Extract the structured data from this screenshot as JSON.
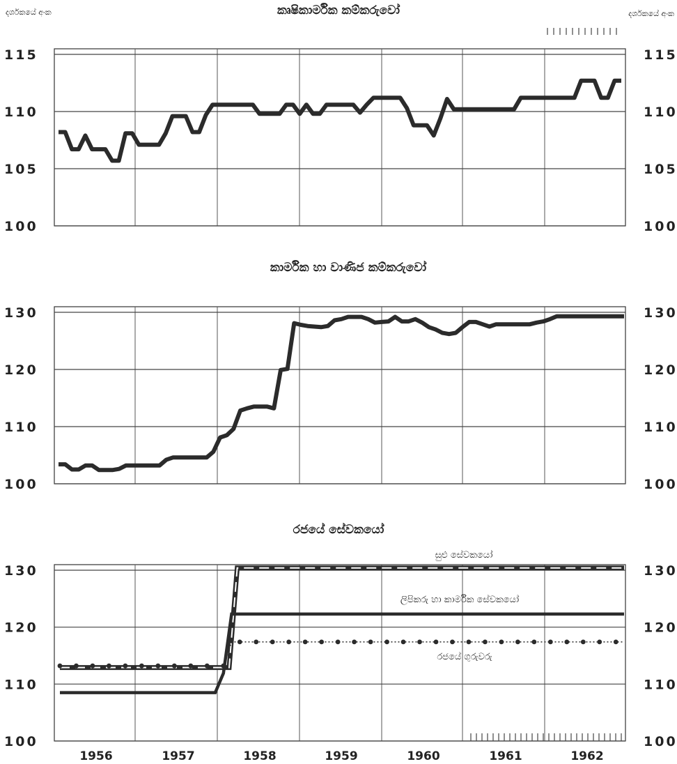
{
  "chart_data": [
    {
      "type": "line",
      "title": "කෘෂිකාර්මික කම්කරුවෝ",
      "ylabel_left": "දර්ශකයේ අංක",
      "ylabel_right": "දර්ශකයේ අංක",
      "ylim": [
        100,
        115
      ],
      "yticks": [
        100,
        105,
        110,
        115
      ],
      "grid": true,
      "series": [
        {
          "values": [
            108.2,
            108.2,
            106.7,
            106.7,
            107.9,
            106.7,
            106.7,
            106.7,
            105.7,
            105.7,
            108.1,
            108.1,
            107.1,
            107.1,
            107.1,
            107.1,
            108.1,
            109.6,
            109.6,
            109.6,
            108.2,
            108.2,
            109.7,
            110.6,
            110.6,
            110.6,
            110.6,
            110.6,
            110.6,
            110.6,
            109.8,
            109.8,
            109.8,
            109.8,
            110.6,
            110.6,
            109.8,
            110.6,
            109.8,
            109.8,
            110.6,
            110.6,
            110.6,
            110.6,
            110.6,
            109.9,
            110.6,
            111.2,
            111.2,
            111.2,
            111.2,
            111.2,
            110.3,
            108.8,
            108.8,
            108.8,
            107.9,
            109.4,
            111.1,
            110.2,
            110.2,
            110.2,
            110.2,
            110.2,
            110.2,
            110.2,
            110.2,
            110.2,
            110.2,
            111.2,
            111.2,
            111.2,
            111.2,
            111.2,
            111.2,
            111.2,
            111.2,
            111.2,
            112.7,
            112.7,
            112.7,
            111.2,
            111.2,
            112.7,
            112.7
          ]
        }
      ]
    },
    {
      "type": "line",
      "title": "කාර්මික හා වාණිජ කම්කරුවෝ",
      "ylim": [
        100,
        130
      ],
      "yticks": [
        100,
        110,
        120,
        130
      ],
      "grid": true,
      "series": [
        {
          "values": [
            103.4,
            103.4,
            102.5,
            102.5,
            103.2,
            103.2,
            102.4,
            102.4,
            102.4,
            102.6,
            103.2,
            103.2,
            103.2,
            103.2,
            103.2,
            103.2,
            104.2,
            104.6,
            104.6,
            104.6,
            104.6,
            104.6,
            104.6,
            105.6,
            108.1,
            108.5,
            109.6,
            112.8,
            113.2,
            113.5,
            113.5,
            113.5,
            113.2,
            119.9,
            120.1,
            128.1,
            127.8,
            127.6,
            127.5,
            127.4,
            127.6,
            128.6,
            128.8,
            129.2,
            129.2,
            129.2,
            128.8,
            128.2,
            128.3,
            128.4,
            129.2,
            128.4,
            128.4,
            128.8,
            128.2,
            127.4,
            127.0,
            126.4,
            126.2,
            126.4,
            127.4,
            128.3,
            128.3,
            127.9,
            127.5,
            127.9,
            127.9,
            127.9,
            127.9,
            127.9,
            127.9,
            128.2,
            128.4,
            128.8,
            129.3,
            129.3,
            129.3,
            129.3,
            129.3,
            129.3,
            129.3,
            129.3,
            129.3,
            129.3,
            129.3
          ]
        }
      ]
    },
    {
      "type": "line",
      "title": "රජයේ සේවකයෝ",
      "ylim": [
        100,
        130
      ],
      "yticks": [
        100,
        110,
        120,
        130
      ],
      "grid": true,
      "series": [
        {
          "name": "සුළු සේවකයෝ",
          "values": [
            112.9,
            112.9,
            112.9,
            112.9,
            112.9,
            112.9,
            112.9,
            112.9,
            112.9,
            112.9,
            112.9,
            112.9,
            112.9,
            112.9,
            112.9,
            112.9,
            112.9,
            112.9,
            112.9,
            112.9,
            112.9,
            112.9,
            130.4,
            130.4,
            130.4,
            130.4,
            130.4,
            130.4,
            130.4,
            130.4,
            130.4,
            130.4,
            130.4,
            130.4,
            130.4,
            130.4,
            130.4,
            130.4,
            130.4,
            130.4,
            130.4,
            130.4,
            130.4,
            130.4,
            130.4,
            130.4,
            130.4,
            130.4,
            130.4,
            130.4,
            130.4,
            130.4,
            130.4,
            130.4,
            130.4,
            130.4,
            130.4,
            130.4,
            130.4,
            130.4,
            130.4,
            130.4,
            130.4,
            130.4,
            130.4,
            130.4,
            130.4,
            130.4,
            130.4,
            130.4,
            130.4
          ]
        },
        {
          "name": "ලිපිකරු හා කාර්මික සේවකයෝ",
          "values": [
            108.5,
            108.5,
            108.5,
            108.5,
            108.5,
            108.5,
            108.5,
            108.5,
            108.5,
            108.5,
            108.5,
            108.5,
            108.5,
            108.5,
            108.5,
            108.5,
            108.5,
            108.5,
            108.5,
            108.5,
            111.9,
            122.3,
            122.3,
            122.3,
            122.3,
            122.3,
            122.3,
            122.3,
            122.3,
            122.3,
            122.3,
            122.3,
            122.3,
            122.3,
            122.3,
            122.3,
            122.3,
            122.3,
            122.3,
            122.3,
            122.3,
            122.3,
            122.3,
            122.3,
            122.3,
            122.3,
            122.3,
            122.3,
            122.3,
            122.3,
            122.3,
            122.3,
            122.3,
            122.3,
            122.3,
            122.3,
            122.3,
            122.3,
            122.3,
            122.3,
            122.3,
            122.3,
            122.3,
            122.3,
            122.3,
            122.3,
            122.3,
            122.3,
            122.3,
            122.3
          ]
        },
        {
          "name": "රජයේ ගුරුවරු",
          "values": [
            113.2,
            113.2,
            113.2,
            113.2,
            113.2,
            113.2,
            113.2,
            113.2,
            113.2,
            113.2,
            113.2,
            113.2,
            113.2,
            113.2,
            113.2,
            113.2,
            113.2,
            113.2,
            113.2,
            113.2,
            113.2,
            117.4,
            117.4,
            117.4,
            117.4,
            117.4,
            117.4,
            117.4,
            117.4,
            117.4,
            117.4,
            117.4,
            117.4,
            117.4,
            117.4,
            117.4,
            117.4,
            117.4,
            117.4,
            117.4,
            117.4,
            117.4,
            117.4,
            117.4,
            117.4,
            117.4,
            117.4,
            117.4,
            117.4,
            117.4,
            117.4,
            117.4,
            117.4,
            117.4,
            117.4,
            117.4,
            117.4,
            117.4,
            117.4,
            117.4,
            117.4,
            117.4,
            117.4,
            117.4,
            117.4,
            117.4,
            117.4,
            117.4,
            117.4,
            117.4
          ]
        }
      ]
    }
  ],
  "x_labels": [
    "1956",
    "1957",
    "1958",
    "1959",
    "1960",
    "1961",
    "1962"
  ]
}
